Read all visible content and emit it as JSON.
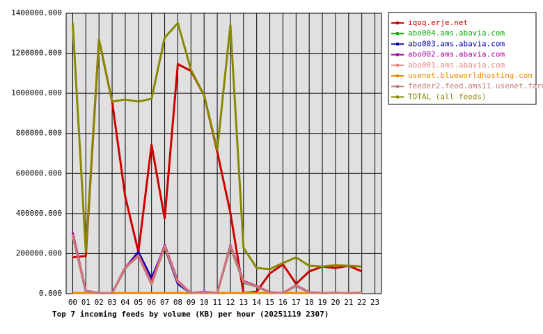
{
  "chart_data": {
    "type": "line",
    "x_label": "Top 7 incoming feeds by volume (KB) per hour (20251119 2307)",
    "categories": [
      "00",
      "01",
      "02",
      "03",
      "04",
      "05",
      "06",
      "07",
      "08",
      "09",
      "10",
      "11",
      "12",
      "13",
      "14",
      "15",
      "16",
      "17",
      "18",
      "19",
      "20",
      "21",
      "22",
      "23"
    ],
    "ylim": [
      0,
      1400000
    ],
    "yticks": [
      {
        "value": 0,
        "label": "0.000"
      },
      {
        "value": 200000,
        "label": "200000.000"
      },
      {
        "value": 400000,
        "label": "400000.000"
      },
      {
        "value": 600000,
        "label": "600000.000"
      },
      {
        "value": 800000,
        "label": "800000.000"
      },
      {
        "value": 1000000,
        "label": "1000000.000"
      },
      {
        "value": 1200000,
        "label": "1200000.000"
      },
      {
        "value": 1400000,
        "label": "1400000.000"
      }
    ],
    "grid": true,
    "legend": "right",
    "series": [
      {
        "name": "iqoq.erje.net",
        "color": "#cc0000",
        "values": [
          181000,
          188000,
          1268000,
          959000,
          483000,
          208000,
          743000,
          375000,
          1146000,
          1112000,
          990000,
          709000,
          403000,
          3000,
          10000,
          101000,
          146000,
          49000,
          111000,
          135000,
          128000,
          139000,
          111000,
          null
        ]
      },
      {
        "name": "abo004.ams.abavia.com",
        "color": "#00aa00",
        "values": [
          290000,
          10000,
          3000,
          3000,
          125000,
          200000,
          55000,
          230000,
          55000,
          3000,
          8000,
          3000,
          235000,
          55000,
          35000,
          5000,
          3000,
          38000,
          6000,
          3000,
          4000,
          3000,
          4000,
          null
        ]
      },
      {
        "name": "abo003.ams.abavia.com",
        "color": "#0000aa",
        "values": [
          295000,
          10000,
          3000,
          3000,
          128000,
          208000,
          76000,
          233000,
          49000,
          3000,
          8000,
          3000,
          238000,
          58000,
          36000,
          6000,
          3000,
          40000,
          6000,
          3000,
          4000,
          3000,
          4000,
          null
        ]
      },
      {
        "name": "abo002.ams.abavia.com",
        "color": "#aa00aa",
        "values": [
          305000,
          14000,
          3000,
          3000,
          132000,
          195000,
          59000,
          243000,
          63000,
          3000,
          10000,
          3000,
          243000,
          63000,
          38000,
          7000,
          3000,
          42000,
          7000,
          3000,
          4000,
          3000,
          4000,
          null
        ]
      },
      {
        "name": "abo001.ams.abavia.com",
        "color": "#ee8080",
        "values": [
          295000,
          12000,
          3000,
          3000,
          130000,
          190000,
          50000,
          238000,
          60000,
          3000,
          9000,
          3000,
          240000,
          60000,
          36000,
          6000,
          3000,
          40000,
          6000,
          3000,
          4000,
          3000,
          4000,
          null
        ]
      },
      {
        "name": "usenet.blueworldhosting.com",
        "color": "#ee8800",
        "values": [
          3000,
          3000,
          3000,
          3000,
          3000,
          3000,
          3000,
          3000,
          3000,
          3000,
          3000,
          3000,
          3000,
          3000,
          3000,
          3000,
          3000,
          3000,
          3000,
          3000,
          3000,
          3000,
          3000,
          null
        ]
      },
      {
        "name": "feeder2.feed.ams11.usenet.farm",
        "color": "#cc7777",
        "values": [
          290000,
          12000,
          3000,
          3000,
          128000,
          188000,
          45000,
          235000,
          58000,
          3000,
          9000,
          3000,
          238000,
          58000,
          35000,
          6000,
          3000,
          39000,
          6000,
          3000,
          4000,
          3000,
          4000,
          null
        ]
      },
      {
        "name": "TOTAL (all feeds)",
        "color": "#888800",
        "values": [
          1351000,
          210000,
          1268000,
          959000,
          969000,
          959000,
          973000,
          1278000,
          1351000,
          1118000,
          990000,
          719000,
          1341000,
          229000,
          128000,
          122000,
          153000,
          181000,
          139000,
          135000,
          142000,
          139000,
          135000,
          null
        ]
      }
    ]
  }
}
